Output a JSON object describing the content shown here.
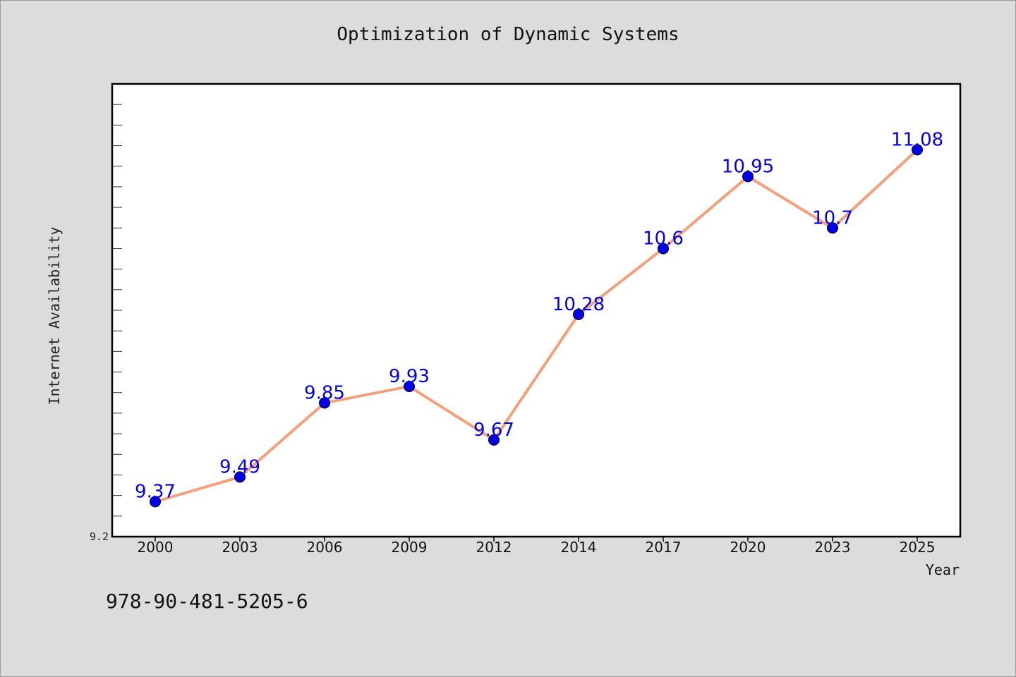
{
  "chart_data": {
    "type": "line",
    "title": "Optimization of Dynamic Systems",
    "xlabel": "Year",
    "ylabel": "Internet Availability",
    "categories": [
      "2000",
      "2003",
      "2006",
      "2009",
      "2012",
      "2014",
      "2017",
      "2020",
      "2023",
      "2025"
    ],
    "values": [
      9.37,
      9.49,
      9.85,
      9.93,
      9.67,
      10.28,
      10.6,
      10.95,
      10.7,
      11.08
    ],
    "data_labels": [
      "9.37",
      "9.49",
      "9.85",
      "9.93",
      "9.67",
      "10.28",
      "10.6",
      "10.95",
      "10.7",
      "11.08"
    ],
    "ylim": [
      9.2,
      11.4
    ],
    "ytick_labels": [
      "9.2"
    ],
    "grid": false,
    "line_color": "#f4a07a",
    "marker_color": "#0000ee",
    "label_color": "#0000ee"
  },
  "footer": {
    "isbn": "978-90-481-5205-6"
  }
}
